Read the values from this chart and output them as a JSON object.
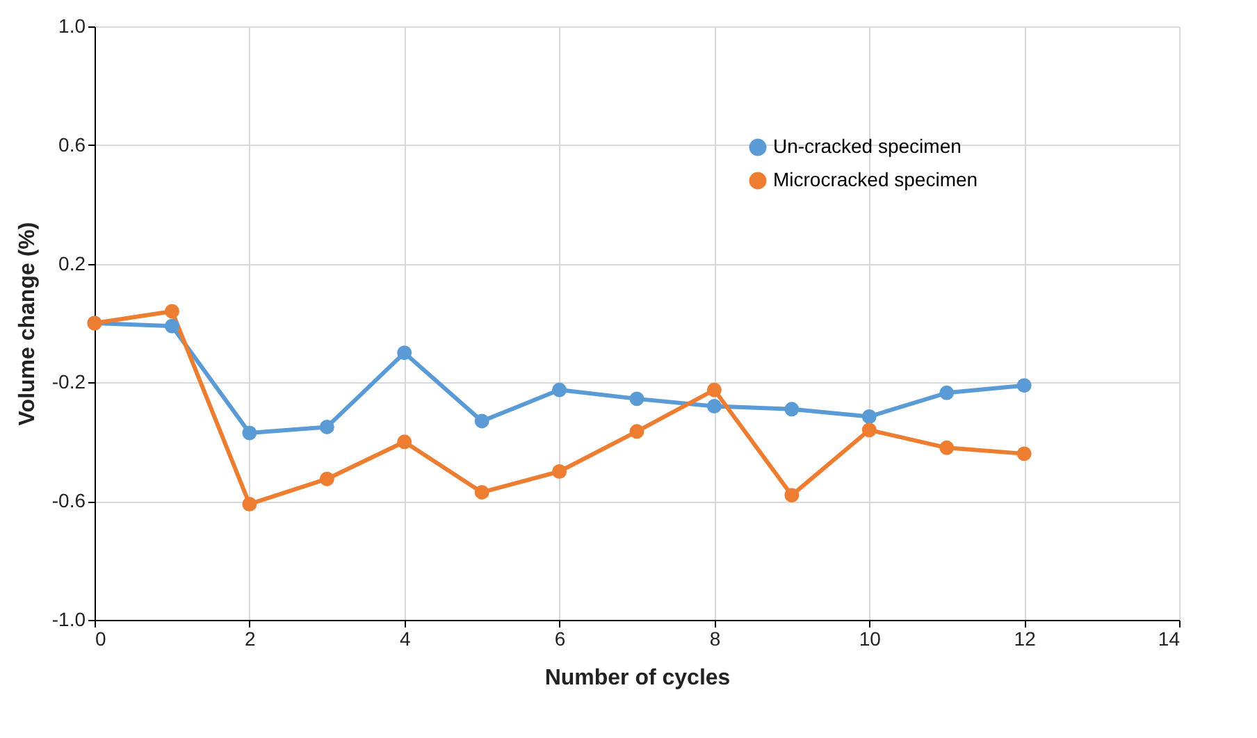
{
  "chart_data": {
    "type": "line",
    "xlabel": "Number of cycles",
    "ylabel": "Volume change (%)",
    "x": [
      0,
      1,
      2,
      3,
      4,
      5,
      6,
      7,
      8,
      9,
      10,
      11,
      12
    ],
    "series": [
      {
        "name": "Un-cracked specimen",
        "color": "#5b9bd5",
        "values": [
          0.0,
          -0.01,
          -0.37,
          -0.35,
          -0.1,
          -0.33,
          -0.225,
          -0.255,
          -0.28,
          -0.29,
          -0.315,
          -0.235,
          -0.21
        ]
      },
      {
        "name": "Microcracked specimen",
        "color": "#ed7d31",
        "values": [
          0.0,
          0.04,
          -0.61,
          -0.525,
          -0.4,
          -0.57,
          -0.5,
          -0.365,
          -0.225,
          -0.58,
          -0.36,
          -0.42,
          -0.44
        ]
      }
    ],
    "xlim": [
      0,
      14
    ],
    "xticks": [
      0,
      2,
      4,
      6,
      8,
      10,
      12,
      14
    ],
    "ylim": [
      -1.0,
      1.0
    ],
    "yticks": [
      {
        "value": -1.0,
        "label": "-1.0"
      },
      {
        "value": -0.6,
        "label": "-0.6"
      },
      {
        "value": -0.2,
        "label": "-0.2"
      },
      {
        "value": 0.2,
        "label": "0.2"
      },
      {
        "value": 0.6,
        "label": "0.6"
      },
      {
        "value": 1.0,
        "label": "1.0"
      }
    ],
    "grid": true,
    "legend": "top right",
    "marker": "circle",
    "line_style": "solid"
  }
}
